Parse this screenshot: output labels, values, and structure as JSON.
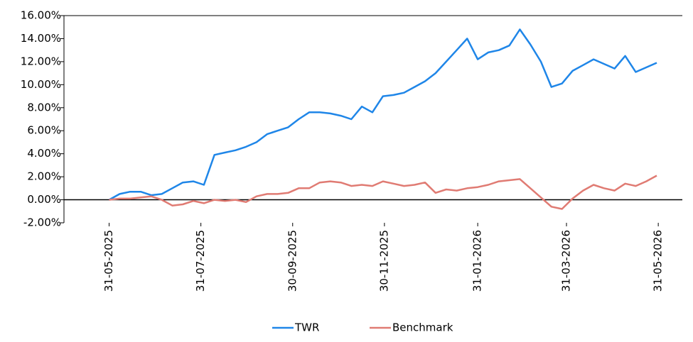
{
  "chart_data": {
    "type": "line",
    "x": [
      "31-05-2025",
      "07-06-2025",
      "14-06-2025",
      "21-06-2025",
      "28-06-2025",
      "05-07-2025",
      "12-07-2025",
      "19-07-2025",
      "26-07-2025",
      "02-08-2025",
      "09-08-2025",
      "16-08-2025",
      "23-08-2025",
      "30-08-2025",
      "06-09-2025",
      "13-09-2025",
      "20-09-2025",
      "27-09-2025",
      "04-10-2025",
      "11-10-2025",
      "18-10-2025",
      "25-10-2025",
      "01-11-2025",
      "08-11-2025",
      "15-11-2025",
      "22-11-2025",
      "29-11-2025",
      "06-12-2025",
      "13-12-2025",
      "20-12-2025",
      "27-12-2025",
      "03-01-2026",
      "10-01-2026",
      "17-01-2026",
      "24-01-2026",
      "31-01-2026",
      "07-02-2026",
      "14-02-2026",
      "21-02-2026",
      "28-02-2026",
      "07-03-2026",
      "14-03-2026",
      "21-03-2026",
      "28-03-2026",
      "04-04-2026",
      "11-04-2026",
      "18-04-2026",
      "25-04-2026",
      "02-05-2026",
      "09-05-2026",
      "16-05-2026",
      "23-05-2026",
      "30-05-2026"
    ],
    "series": [
      {
        "name": "TWR",
        "color": "#1f86e8",
        "values": [
          0,
          0.5,
          0.7,
          0.7,
          0.4,
          0.5,
          1.0,
          1.5,
          1.6,
          1.3,
          3.9,
          4.1,
          4.3,
          4.6,
          5.0,
          5.7,
          6.0,
          6.3,
          7.0,
          7.6,
          7.6,
          7.5,
          7.3,
          7.0,
          8.1,
          7.6,
          9.0,
          9.1,
          9.3,
          9.8,
          10.3,
          11.0,
          12.0,
          13.0,
          14.0,
          12.2,
          12.8,
          13.0,
          13.4,
          14.8,
          13.5,
          12.0,
          9.8,
          10.1,
          11.2,
          11.7,
          12.2,
          11.8,
          11.4,
          12.5,
          11.1,
          11.5,
          11.9
        ]
      },
      {
        "name": "Benchmark",
        "color": "#e07b73",
        "values": [
          0,
          0.1,
          0.1,
          0.2,
          0.3,
          0.0,
          -0.5,
          -0.4,
          -0.1,
          -0.3,
          0.0,
          -0.1,
          0.0,
          -0.2,
          0.3,
          0.5,
          0.5,
          0.6,
          1.0,
          1.0,
          1.5,
          1.6,
          1.5,
          1.2,
          1.3,
          1.2,
          1.6,
          1.4,
          1.2,
          1.3,
          1.5,
          0.6,
          0.9,
          0.8,
          1.0,
          1.1,
          1.3,
          1.6,
          1.7,
          1.8,
          1.0,
          0.2,
          -0.6,
          -0.8,
          0.1,
          0.8,
          1.3,
          1.0,
          0.8,
          1.4,
          1.2,
          1.6,
          2.1
        ]
      }
    ],
    "xlim": [
      "01-05-2025",
      "16-06-2026"
    ],
    "xticks": [
      "31-05-2025",
      "31-07-2025",
      "30-09-2025",
      "30-11-2025",
      "31-01-2026",
      "31-03-2026",
      "31-05-2026"
    ],
    "ylim": [
      -2,
      16
    ],
    "yticks": [
      {
        "value": -2,
        "label": "-2.00%"
      },
      {
        "value": 0,
        "label": "0.00%"
      },
      {
        "value": 2,
        "label": "2.00%"
      },
      {
        "value": 4,
        "label": "4.00%"
      },
      {
        "value": 6,
        "label": "6.00%"
      },
      {
        "value": 8,
        "label": "8.00%"
      },
      {
        "value": 10,
        "label": "10.00%"
      },
      {
        "value": 12,
        "label": "12.00%"
      },
      {
        "value": 14,
        "label": "14.00%"
      },
      {
        "value": 16,
        "label": "16.00%"
      }
    ],
    "grid": false,
    "legend": "bottom"
  }
}
